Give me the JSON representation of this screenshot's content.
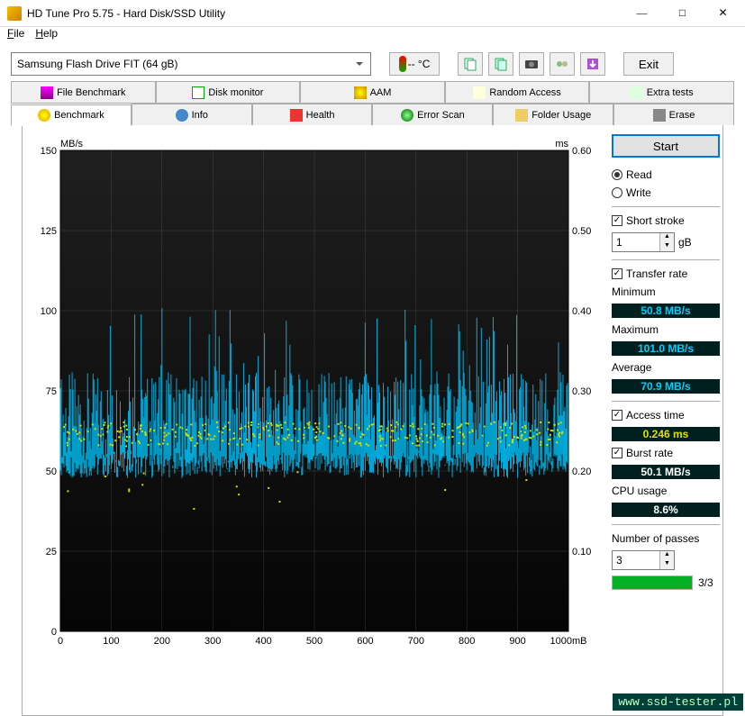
{
  "window": {
    "title": "HD Tune Pro 5.75 - Hard Disk/SSD Utility"
  },
  "menu": {
    "file": "File",
    "help": "Help"
  },
  "drive": "Samsung Flash Drive FIT (64 gB)",
  "temp": "-- °C",
  "exit": "Exit",
  "tabs_top": [
    "File Benchmark",
    "Disk monitor",
    "AAM",
    "Random Access",
    "Extra tests"
  ],
  "tabs_bottom": [
    "Benchmark",
    "Info",
    "Health",
    "Error Scan",
    "Folder Usage",
    "Erase"
  ],
  "start": "Start",
  "read": "Read",
  "write": "Write",
  "short_stroke": "Short stroke",
  "short_stroke_val": "1",
  "short_stroke_unit": "gB",
  "transfer_rate": "Transfer rate",
  "min_label": "Minimum",
  "min_val": "50.8 MB/s",
  "max_label": "Maximum",
  "max_val": "101.0 MB/s",
  "avg_label": "Average",
  "avg_val": "70.9 MB/s",
  "access_label": "Access time",
  "access_val": "0.246 ms",
  "burst_label": "Burst rate",
  "burst_val": "50.1 MB/s",
  "cpu_label": "CPU usage",
  "cpu_val": "8.6%",
  "passes_label": "Number of passes",
  "passes_val": "3",
  "passes_progress": "3/3",
  "chart": {
    "y_label": "MB/s",
    "y2_label": "ms",
    "x_label_last": "1000mB",
    "y_ticks": [
      0,
      25,
      50,
      75,
      100,
      125,
      150
    ],
    "y2_ticks": [
      "0.10",
      "0.20",
      "0.30",
      "0.40",
      "0.50",
      "0.60"
    ],
    "x_ticks": [
      0,
      100,
      200,
      300,
      400,
      500,
      600,
      700,
      800,
      900
    ],
    "line_color": "#00bcf2",
    "dot_color": "#d0e000",
    "grid_color": "#808080",
    "bg_top": "#1f1f1f",
    "bg_bottom": "#050505",
    "y_range": [
      0,
      150
    ],
    "y2_range": [
      0,
      0.6
    ],
    "x_range": [
      0,
      1000
    ],
    "transfer_avg": 70.9,
    "transfer_min": 50.8,
    "transfer_max": 101.0,
    "access_avg": 0.246
  },
  "watermark": "www.ssd-tester.pl"
}
